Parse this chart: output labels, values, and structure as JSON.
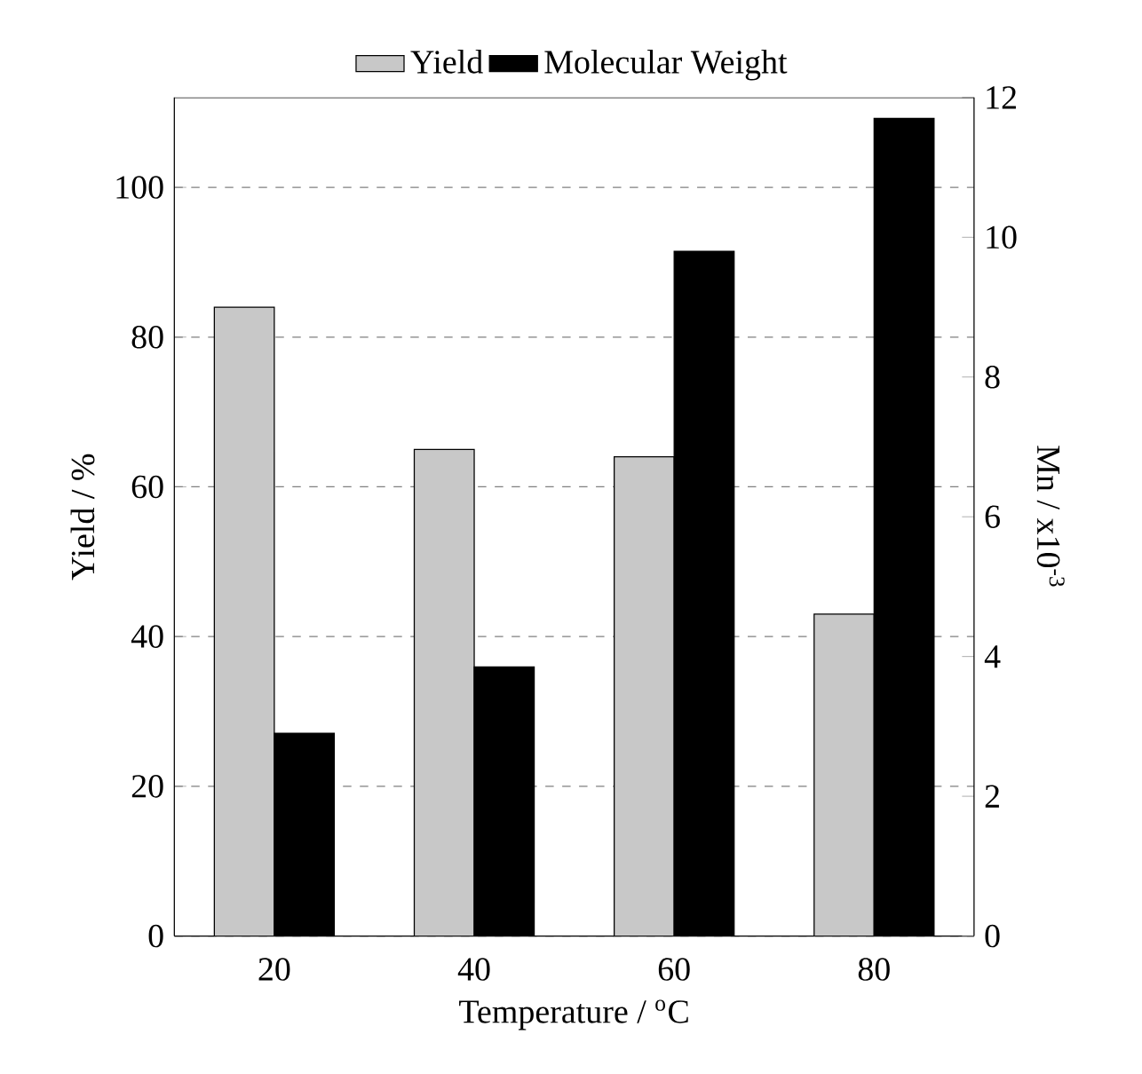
{
  "chart_data": {
    "type": "bar",
    "xlabel": "Temperature / $^{o}$C",
    "ylabel": "Yield / %",
    "y2label": "Mn / x10$^{-3}$",
    "categories": [
      "20",
      "40",
      "60",
      "80"
    ],
    "series": [
      {
        "name": "Yield",
        "color": "#c8c8c8",
        "values": [
          84,
          65,
          64,
          43
        ]
      },
      {
        "name": "Molecular Weight",
        "color": "#000000",
        "axis": "y2",
        "values": [
          2.9,
          3.85,
          9.8,
          11.7
        ]
      }
    ],
    "ylim": [
      0,
      112
    ],
    "yticks": [
      0,
      20,
      40,
      60,
      80,
      100
    ],
    "y2lim": [
      0,
      12
    ],
    "y2ticks": [
      0,
      2,
      4,
      6,
      8,
      10,
      12
    ],
    "grid": "y",
    "legend": "top"
  }
}
